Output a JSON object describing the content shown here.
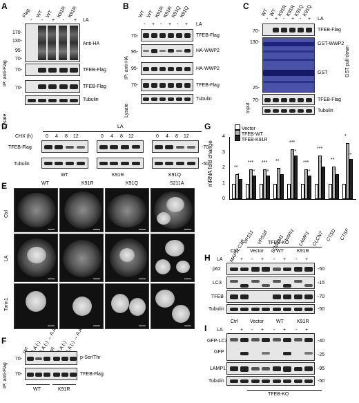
{
  "panels": {
    "A": "A",
    "B": "B",
    "C": "C",
    "D": "D",
    "E": "E",
    "F": "F",
    "G": "G",
    "H": "H",
    "I": "I"
  },
  "A": {
    "lanes": [
      "Flag",
      "WT",
      "WT",
      "K91R",
      "K91R"
    ],
    "la_label": "LA",
    "la_signs": [
      "-",
      "-",
      "+",
      "-",
      "+"
    ],
    "ip_label": "IP: anti-Flag",
    "lysate_label": "Lysate",
    "mw_top": [
      "170-",
      "130-",
      "95-",
      "70-"
    ],
    "mw_flag": "70-",
    "mw_lys_flag": "70-",
    "bands": [
      "Anti-HA",
      "TFEB-Flag",
      "TFEB-Flag",
      "Tubulin"
    ]
  },
  "B": {
    "lanes": [
      "WT",
      "WT",
      "K91R",
      "K91R",
      "K91Q",
      "K91Q"
    ],
    "la_label": "LA",
    "la_signs": [
      "-",
      "+",
      "-",
      "+",
      "-",
      "+"
    ],
    "ip_label": "IP: anti-HA",
    "lysate_label": "Lysate",
    "mw": [
      "70-",
      "95-",
      "95-",
      "70-"
    ],
    "bands": [
      "TFEB-Flag",
      "HA-WWP2",
      "HA-WWP2",
      "TFEB-Flag",
      "Tubulin"
    ]
  },
  "C": {
    "lanes": [
      "WT",
      "WT",
      "K91R",
      "K91R",
      "K91Q",
      "K91Q"
    ],
    "la_label": "LA",
    "la_signs": [
      "-",
      "+",
      "-",
      "+",
      "-",
      "+"
    ],
    "pulldown_label": "GST pull-down",
    "input_label": "Input",
    "mw": [
      "70-",
      "130-",
      "25-",
      "70-"
    ],
    "bands": [
      "TFEB-Flag",
      "GST-WWP2",
      "GST",
      "TFEB-Flag",
      "Tubulin"
    ]
  },
  "D": {
    "cond": "LA",
    "chx_label": "CHX (h)",
    "times": [
      "0",
      "4",
      "8",
      "12"
    ],
    "groups": [
      "WT",
      "K91R",
      "K91Q"
    ],
    "bands": [
      "TFEB-Flag",
      "Tubulin"
    ],
    "mw": [
      "-70",
      "-50"
    ]
  },
  "E": {
    "cols": [
      "WT",
      "K91R",
      "K91Q",
      "S211A"
    ],
    "rows": [
      "Ctrl",
      "LA",
      "Torin1"
    ]
  },
  "F": {
    "lanes": [
      "ctrl",
      "A.A (-)",
      "A.A (-) → A.A",
      "ctrl",
      "A.A (-)",
      "A.A (-) → A.A"
    ],
    "groups": [
      "WT",
      "K91R"
    ],
    "ip_label": "IP: anti-Flag",
    "mw": [
      "70-",
      "70-"
    ],
    "bands": [
      "p-Ser/Thr",
      "TFEB-Flag"
    ]
  },
  "G": {
    "ylabel": "mRNA fold change",
    "legend": [
      "Vector",
      "TFEB-WT",
      "TFEB-K91R"
    ],
    "sig": [
      "**",
      "*",
      "***",
      "**",
      "***",
      "**",
      "**",
      "*",
      "***",
      "**",
      "***",
      "**",
      "***",
      "*",
      "**",
      "*",
      "*",
      "**"
    ]
  },
  "H": {
    "header": "TFEB-KO",
    "groups": [
      "Ctrl",
      "Vector",
      "WT",
      "K91R"
    ],
    "la_label": "LA",
    "la_signs": [
      "-",
      "+",
      "-",
      "+",
      "-",
      "+",
      "-",
      "+"
    ],
    "bands": [
      "p62",
      "LC3",
      "TFEB",
      "Tubulin"
    ],
    "mw": [
      "-50",
      "-15",
      "-70",
      "-50"
    ]
  },
  "I": {
    "footer": "TFEB-KO",
    "groups": [
      "Ctrl",
      "Vector",
      "WT",
      "K91R"
    ],
    "la_label": "LA",
    "la_signs": [
      "-",
      "+",
      "-",
      "+",
      "-",
      "+",
      "-",
      "+"
    ],
    "bands": [
      "GFP-LC3",
      "GFP",
      "LAMP1",
      "Tubulin"
    ],
    "mw": [
      "-40",
      "-25",
      "-95",
      "-50"
    ]
  },
  "chart_data": {
    "type": "bar",
    "ylabel": "mRNA fold change",
    "ylim": [
      0,
      4
    ],
    "yticks": [
      "0",
      "1",
      "2",
      "3",
      "4"
    ],
    "categories": [
      "MAP1LC3B",
      "VPS11",
      "VPS18",
      "SQSTM1",
      "WIPI1",
      "LAMP1",
      "CLCN7",
      "CTSD",
      "CTSF"
    ],
    "series": [
      {
        "name": "Vector",
        "color": "#ffffff",
        "values": [
          1.0,
          1.0,
          1.0,
          1.0,
          1.0,
          1.0,
          1.0,
          1.0,
          1.0
        ]
      },
      {
        "name": "TFEB-WT",
        "color": "#b0b0b0",
        "values": [
          1.6,
          1.9,
          1.9,
          2.0,
          3.2,
          1.9,
          2.8,
          2.1,
          3.6
        ]
      },
      {
        "name": "TFEB-K91R",
        "color": "#222222",
        "values": [
          1.3,
          1.5,
          1.5,
          1.6,
          2.8,
          1.5,
          2.1,
          1.6,
          2.6
        ]
      }
    ]
  }
}
